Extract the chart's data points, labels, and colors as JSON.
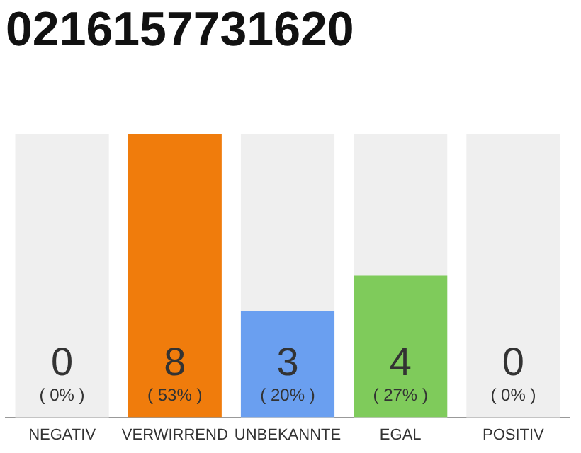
{
  "chart_data": {
    "type": "bar",
    "title": "0216157731620",
    "categories": [
      "NEGATIV",
      "VERWIRREND",
      "UNBEKANNTE",
      "EGAL",
      "POSITIV"
    ],
    "values": [
      0,
      8,
      3,
      4,
      0
    ],
    "colors": [
      "#f07c0c",
      "#f07c0c",
      "#6a9ff0",
      "#7fcb5b",
      "#f07c0c"
    ],
    "ylim": [
      0,
      8
    ],
    "tick_labels": "x",
    "data_labels": true,
    "annotations": [
      "( 0% )",
      "( 53% )",
      "( 20% )",
      "( 27% )",
      "( 0% )"
    ],
    "bands": [
      {
        "axis": "x",
        "from": "NEGATIV",
        "to": "NEGATIV",
        "color": "#efefef"
      },
      {
        "axis": "x",
        "from": "UNBEKANNTE",
        "to": "UNBEKANNTE",
        "color": "#efefef"
      },
      {
        "axis": "x",
        "from": "EGAL",
        "to": "EGAL",
        "color": "#efefef"
      },
      {
        "axis": "x",
        "from": "POSITIV",
        "to": "POSITIV",
        "color": "#efefef"
      }
    ],
    "grid": false,
    "legend": false
  }
}
